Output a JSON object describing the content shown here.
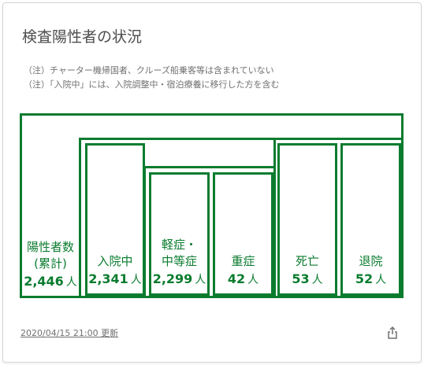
{
  "card": {
    "title": "検査陽性者の状況",
    "notes": [
      "（注）チャーター機帰国者、クルーズ船乗客等は含まれていない",
      "（注）「入院中」には、入院調整中・宿泊療養に移行した方を含む"
    ]
  },
  "boxes": {
    "positive": {
      "label": "陽性者数\n(累計)",
      "value": "2,446",
      "unit": "人"
    },
    "hospitalized": {
      "label": "入院中",
      "value": "2,341",
      "unit": "人"
    },
    "mild": {
      "label": "軽症・\n中等症",
      "value": "2,299",
      "unit": "人"
    },
    "severe": {
      "label": "重症",
      "value": "42",
      "unit": "人"
    },
    "deceased": {
      "label": "死亡",
      "value": "53",
      "unit": "人"
    },
    "discharged": {
      "label": "退院",
      "value": "52",
      "unit": "人"
    }
  },
  "footer": {
    "updated": "2020/04/15 21:00 更新",
    "share_icon": "share-icon"
  },
  "colors": {
    "accent": "#0b7c2f",
    "text": "#4d4d4d",
    "muted": "#707070"
  }
}
